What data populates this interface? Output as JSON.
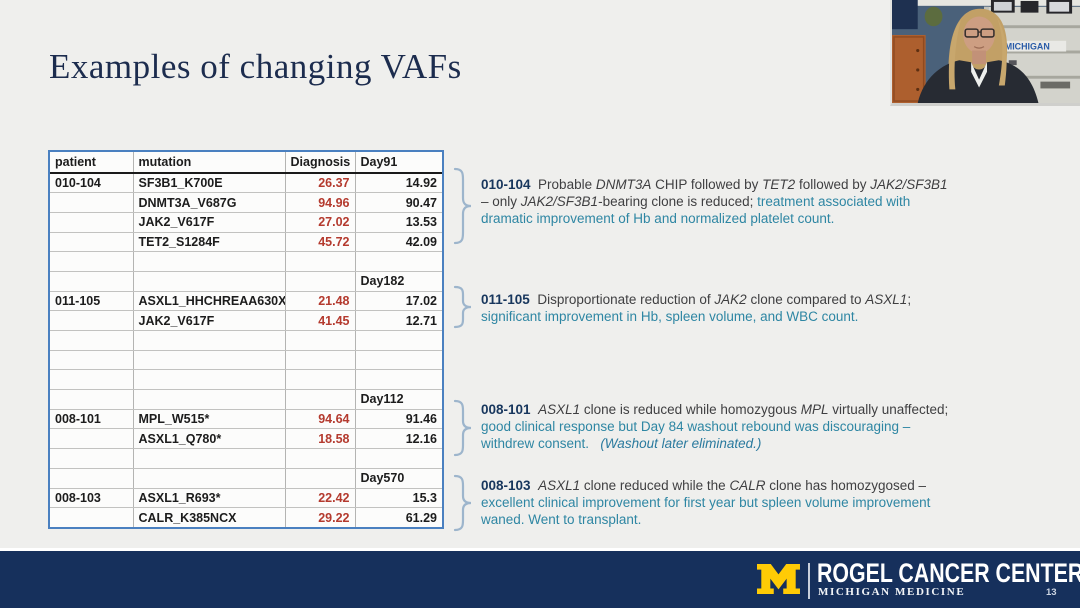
{
  "slide": {
    "title": "Examples of changing VAFs",
    "page_number": "13"
  },
  "table": {
    "headers": [
      "patient",
      "mutation",
      "Diagnosis",
      "Day91"
    ],
    "rows": [
      {
        "patient": "010-104",
        "mutation": "SF3B1_K700E",
        "diagnosis": "26.37",
        "day": "14.92",
        "day_label": false
      },
      {
        "patient": "",
        "mutation": "DNMT3A_V687G",
        "diagnosis": "94.96",
        "day": "90.47",
        "day_label": false
      },
      {
        "patient": "",
        "mutation": "JAK2_V617F",
        "diagnosis": "27.02",
        "day": "13.53",
        "day_label": false
      },
      {
        "patient": "",
        "mutation": "TET2_S1284F",
        "diagnosis": "45.72",
        "day": "42.09",
        "day_label": false
      },
      {
        "patient": "",
        "mutation": "",
        "diagnosis": "",
        "day": "",
        "day_label": false
      },
      {
        "patient": "",
        "mutation": "",
        "diagnosis": "",
        "day": "Day182",
        "day_label": true
      },
      {
        "patient": "011-105",
        "mutation": "ASXL1_HHCHREAA630X",
        "diagnosis": "21.48",
        "day": "17.02",
        "day_label": false
      },
      {
        "patient": "",
        "mutation": "JAK2_V617F",
        "diagnosis": "41.45",
        "day": "12.71",
        "day_label": false
      },
      {
        "patient": "",
        "mutation": "",
        "diagnosis": "",
        "day": "",
        "day_label": false
      },
      {
        "patient": "",
        "mutation": "",
        "diagnosis": "",
        "day": "",
        "day_label": false
      },
      {
        "patient": "",
        "mutation": "",
        "diagnosis": "",
        "day": "",
        "day_label": false
      },
      {
        "patient": "",
        "mutation": "",
        "diagnosis": "",
        "day": "Day112",
        "day_label": true
      },
      {
        "patient": "008-101",
        "mutation": "MPL_W515*",
        "diagnosis": "94.64",
        "day": "91.46",
        "day_label": false
      },
      {
        "patient": "",
        "mutation": "ASXL1_Q780*",
        "diagnosis": "18.58",
        "day": "12.16",
        "day_label": false
      },
      {
        "patient": "",
        "mutation": "",
        "diagnosis": "",
        "day": "",
        "day_label": false
      },
      {
        "patient": "",
        "mutation": "",
        "diagnosis": "",
        "day": "Day570",
        "day_label": true
      },
      {
        "patient": "008-103",
        "mutation": "ASXL1_R693*",
        "diagnosis": "22.42",
        "day": "15.3",
        "day_label": false
      },
      {
        "patient": "",
        "mutation": "CALR_K385NCX",
        "diagnosis": "29.22",
        "day": "61.29",
        "day_label": false
      }
    ]
  },
  "annotations": [
    {
      "patient_id": "010-104",
      "segments": [
        {
          "text": "010-104",
          "style": "id"
        },
        {
          "text": "  Probable ",
          "style": "d"
        },
        {
          "text": "DNMT3A",
          "style": "di"
        },
        {
          "text": " CHIP followed by ",
          "style": "d"
        },
        {
          "text": "TET2",
          "style": "di"
        },
        {
          "text": " followed by ",
          "style": "d"
        },
        {
          "text": "JAK2/SF3B1",
          "style": "di"
        },
        {
          "text": "\n– only ",
          "style": "d"
        },
        {
          "text": "JAK2/SF3B1",
          "style": "di"
        },
        {
          "text": "-bearing clone is reduced; ",
          "style": "d"
        },
        {
          "text": "treatment associated with\ndramatic improvement of Hb and normalized platelet count.",
          "style": "t"
        }
      ]
    },
    {
      "patient_id": "011-105",
      "segments": [
        {
          "text": "011-105",
          "style": "id"
        },
        {
          "text": "  Disproportionate reduction of ",
          "style": "d"
        },
        {
          "text": "JAK2",
          "style": "di"
        },
        {
          "text": " clone compared to ",
          "style": "d"
        },
        {
          "text": "ASXL1",
          "style": "di"
        },
        {
          "text": ";\n",
          "style": "d"
        },
        {
          "text": "significant improvement in Hb, spleen volume, and WBC count.",
          "style": "t"
        }
      ]
    },
    {
      "patient_id": "008-101",
      "segments": [
        {
          "text": "008-101",
          "style": "id"
        },
        {
          "text": "  ",
          "style": "d"
        },
        {
          "text": "ASXL1",
          "style": "di"
        },
        {
          "text": " clone is reduced while homozygous ",
          "style": "d"
        },
        {
          "text": "MPL",
          "style": "di"
        },
        {
          "text": " virtually unaffected;\n",
          "style": "d"
        },
        {
          "text": "good clinical response but Day 84 washout rebound was discouraging –\nwithdrew consent.   ",
          "style": "t"
        },
        {
          "text": "(Washout later eliminated.)",
          "style": "ti"
        }
      ]
    },
    {
      "patient_id": "008-103",
      "segments": [
        {
          "text": "008-103",
          "style": "id"
        },
        {
          "text": "  ",
          "style": "d"
        },
        {
          "text": "ASXL1",
          "style": "di"
        },
        {
          "text": " clone reduced while the ",
          "style": "d"
        },
        {
          "text": "CALR",
          "style": "di"
        },
        {
          "text": " clone has homozygosed –\n",
          "style": "d"
        },
        {
          "text": "excellent clinical improvement for first year but spleen volume improvement\nwaned. Went to transplant.",
          "style": "t"
        }
      ]
    }
  ],
  "footer": {
    "logo_letter": "M",
    "org_name": "ROGEL CANCER CENTER",
    "org_sub": "MICHIGAN MEDICINE"
  },
  "webcam": {
    "shelf_sign_text": "MICHIGAN"
  },
  "colors": {
    "slide_bg": "#efefed",
    "title_navy": "#1c2c4e",
    "table_border_blue": "#4a80c0",
    "diagnosis_red": "#b43a2e",
    "annotation_navy": "#17365d",
    "annotation_teal": "#2e86a3",
    "brace_blue": "#9db5cc",
    "footer_navy": "#16305c",
    "maize": "#ffcb05"
  }
}
